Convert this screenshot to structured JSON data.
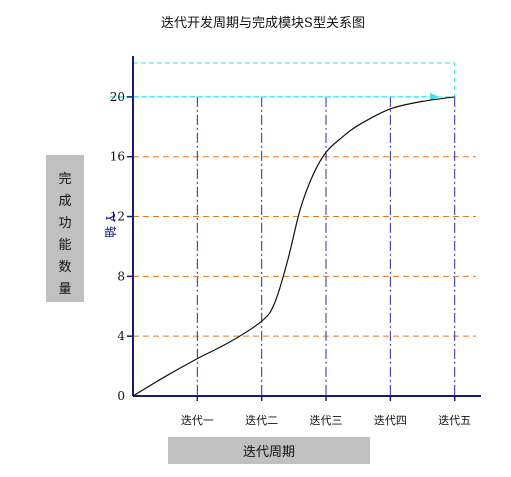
{
  "chart_data": {
    "type": "line",
    "title": "迭代开发周期与完成模块S型关系图",
    "xlabel": "迭代周期",
    "ylabel": "完成功能数量",
    "y_axis_inner_label": "Y 轴",
    "categories": [
      "迭代一",
      "迭代二",
      "迭代三",
      "迭代四",
      "迭代五"
    ],
    "x_positions": [
      1,
      2,
      3,
      4,
      5
    ],
    "xlim": [
      0,
      5.3
    ],
    "ylim": [
      0,
      22
    ],
    "yticks": [
      0,
      4,
      8,
      12,
      16,
      20
    ],
    "ytick_labels": [
      "0",
      "4",
      "8",
      "12",
      "16",
      "20"
    ],
    "series": [
      {
        "points": [
          [
            0,
            0
          ],
          [
            0.5,
            1.3
          ],
          [
            1,
            2.5
          ],
          [
            1.5,
            3.6
          ],
          [
            2,
            5.0
          ],
          [
            2.2,
            6.2
          ],
          [
            2.4,
            9.0
          ],
          [
            2.6,
            12.5
          ],
          [
            2.8,
            14.8
          ],
          [
            3,
            16.3
          ],
          [
            3.25,
            17.3
          ],
          [
            3.5,
            18.1
          ],
          [
            4,
            19.2
          ],
          [
            4.5,
            19.7
          ],
          [
            5,
            20
          ]
        ]
      }
    ],
    "reference_line": {
      "y": 20,
      "x_end": 5
    },
    "horizontal_guides": [
      4,
      8,
      12,
      16
    ],
    "vertical_guides": [
      1,
      2,
      3,
      4,
      5
    ],
    "grid": true,
    "colors": {
      "axis": "#1a1a6e",
      "horizontal_guides": "#e07a1f",
      "vertical_guides": "#2a2a9a",
      "reference_box": "#33e6f0",
      "curve": "#111111",
      "label_box": "#c0c0c0"
    }
  }
}
